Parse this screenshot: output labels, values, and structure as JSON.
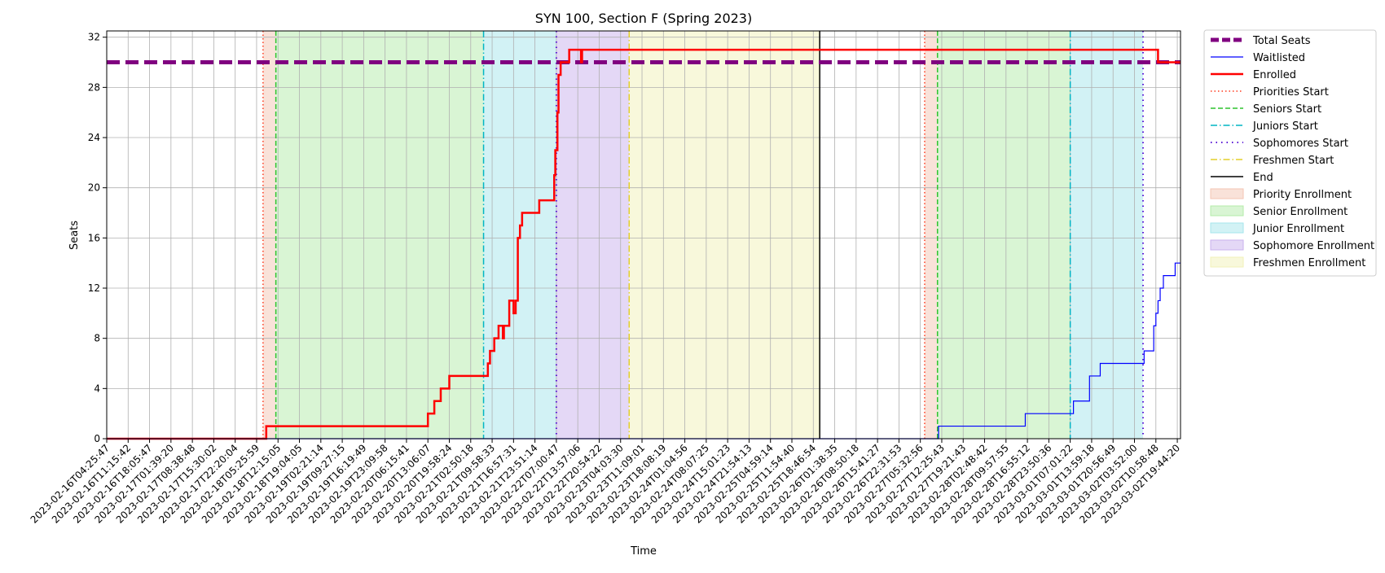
{
  "chart_data": {
    "type": "line",
    "title": "SYN 100, Section F (Spring 2023)",
    "xlabel": "Time",
    "ylabel": "Seats",
    "ylim": [
      0,
      32.5
    ],
    "yticks": [
      0,
      4,
      8,
      12,
      16,
      20,
      24,
      28,
      32
    ],
    "grid": true,
    "legend_position": "outside-right-top",
    "x_ticks": [
      "2023-02-16T04:25:47",
      "2023-02-16T11:15:42",
      "2023-02-16T18:05:47",
      "2023-02-17T01:39:20",
      "2023-02-17T08:38:48",
      "2023-02-17T15:30:02",
      "2023-02-17T22:20:04",
      "2023-02-18T05:25:59",
      "2023-02-18T12:15:05",
      "2023-02-18T19:04:05",
      "2023-02-19T02:21:14",
      "2023-02-19T09:27:15",
      "2023-02-19T16:19:49",
      "2023-02-19T23:09:58",
      "2023-02-20T06:15:41",
      "2023-02-20T13:06:07",
      "2023-02-20T19:58:24",
      "2023-02-21T02:50:18",
      "2023-02-21T09:58:33",
      "2023-02-21T16:57:31",
      "2023-02-21T23:51:14",
      "2023-02-22T07:00:47",
      "2023-02-22T13:57:06",
      "2023-02-22T20:54:22",
      "2023-02-23T04:03:30",
      "2023-02-23T11:09:01",
      "2023-02-23T18:08:19",
      "2023-02-24T01:04:56",
      "2023-02-24T08:07:25",
      "2023-02-24T15:01:23",
      "2023-02-24T21:54:13",
      "2023-02-25T04:59:14",
      "2023-02-25T11:54:40",
      "2023-02-25T18:46:54",
      "2023-02-26T01:38:35",
      "2023-02-26T08:50:18",
      "2023-02-26T15:41:27",
      "2023-02-26T22:31:53",
      "2023-02-27T05:32:56",
      "2023-02-27T12:25:43",
      "2023-02-27T19:21:43",
      "2023-02-28T02:48:42",
      "2023-02-28T09:57:55",
      "2023-02-28T16:55:12",
      "2023-02-28T23:50:36",
      "2023-03-01T07:01:22",
      "2023-03-01T13:59:18",
      "2023-03-01T20:56:49",
      "2023-03-02T03:52:00",
      "2023-03-02T10:58:48",
      "2023-03-02T19:44:20"
    ],
    "x_start_tick": 0,
    "x_end_tick": 50.15,
    "regions": [
      {
        "name": "Priority Enrollment",
        "x0": 7.3,
        "x1": 7.9,
        "color": "#f4c6b4"
      },
      {
        "name": "Senior Enrollment",
        "x0": 7.9,
        "x1": 17.6,
        "color": "#b4ecaa"
      },
      {
        "name": "Junior Enrollment",
        "x0": 17.6,
        "x1": 21.0,
        "color": "#a6e6ec"
      },
      {
        "name": "Sophomore Enrollment",
        "x0": 21.0,
        "x1": 24.4,
        "color": "#cab2ee"
      },
      {
        "name": "Freshmen Enrollment",
        "x0": 24.4,
        "x1": 33.3,
        "color": "#f2f2b8"
      },
      {
        "name": "Priority Enrollment",
        "x0": 38.2,
        "x1": 38.8,
        "color": "#f4c6b4"
      },
      {
        "name": "Senior Enrollment",
        "x0": 38.8,
        "x1": 45.0,
        "color": "#b4ecaa"
      },
      {
        "name": "Junior Enrollment",
        "x0": 45.0,
        "x1": 48.4,
        "color": "#a6e6ec"
      }
    ],
    "vlines": [
      {
        "name": "Priorities Start",
        "x": 7.3,
        "color": "#ff3b1f",
        "dash": "1.5,3",
        "width": 1.5
      },
      {
        "name": "Seniors Start",
        "x": 7.9,
        "color": "#2ec42e",
        "dash": "6,3",
        "width": 1.5
      },
      {
        "name": "Juniors Start",
        "x": 17.6,
        "color": "#00b5c4",
        "dash": "8,3,1.5,3",
        "width": 1.5
      },
      {
        "name": "Sophomores Start",
        "x": 21.0,
        "color": "#5a16d6",
        "dash": "1.5,5",
        "width": 2
      },
      {
        "name": "Freshmen Start",
        "x": 24.4,
        "color": "#e3cf2a",
        "dash": "8,3,1.5,3",
        "width": 1.5
      },
      {
        "name": "End",
        "x": 33.3,
        "color": "#000000",
        "dash": "",
        "width": 1.5
      },
      {
        "name": "Priorities Start",
        "x": 38.2,
        "color": "#ff3b1f",
        "dash": "1.5,3",
        "width": 1.5
      },
      {
        "name": "Seniors Start",
        "x": 38.8,
        "color": "#2ec42e",
        "dash": "6,3",
        "width": 1.5
      },
      {
        "name": "Juniors Start",
        "x": 45.0,
        "color": "#00b5c4",
        "dash": "8,3,1.5,3",
        "width": 1.5
      },
      {
        "name": "Sophomores Start",
        "x": 48.4,
        "color": "#5a16d6",
        "dash": "1.5,5",
        "width": 2
      }
    ],
    "series": [
      {
        "name": "Total Seats",
        "color": "#800080",
        "style": "dashed",
        "width": 5,
        "x": [
          0,
          50.15
        ],
        "y": [
          30,
          30
        ]
      },
      {
        "name": "Enrolled",
        "color": "#ff0000",
        "style": "step",
        "width": 2.5,
        "x": [
          0,
          7.45,
          7.75,
          7.8,
          15.0,
          15.3,
          15.6,
          16.0,
          16.1,
          17.8,
          17.9,
          18.1,
          18.3,
          18.5,
          18.55,
          18.7,
          18.8,
          19.0,
          19.1,
          19.2,
          19.3,
          19.4,
          19.45,
          19.6,
          20.2,
          20.9,
          20.95,
          21.05,
          21.1,
          21.2,
          21.25,
          21.35,
          21.6,
          22.15,
          22.2,
          49.0,
          49.1,
          50.15
        ],
        "y": [
          0,
          1,
          1,
          1,
          2,
          3,
          4,
          5,
          5,
          6,
          7,
          8,
          9,
          8,
          9,
          9,
          11,
          10,
          11,
          16,
          17,
          18,
          18,
          18,
          19,
          21,
          23,
          26,
          29,
          30,
          30,
          30,
          31,
          30,
          31,
          31,
          30,
          30
        ]
      },
      {
        "name": "Waitlisted",
        "color": "#0000ff",
        "style": "step",
        "width": 1.2,
        "x": [
          0,
          38.85,
          42.9,
          45.1,
          45.15,
          45.2,
          45.9,
          46.4,
          48.45,
          48.9,
          49.0,
          49.1,
          49.2,
          49.35,
          49.5,
          49.6,
          49.9,
          50.1,
          50.15
        ],
        "y": [
          0,
          1,
          2,
          2,
          3,
          3,
          5,
          6,
          7,
          9,
          10,
          11,
          12,
          13,
          13,
          13,
          14,
          14,
          14
        ]
      }
    ],
    "legend": [
      {
        "label": "Total Seats",
        "kind": "line",
        "color": "#800080",
        "dash": "10,4",
        "width": 5
      },
      {
        "label": "Waitlisted",
        "kind": "line",
        "color": "#0000ff",
        "dash": "",
        "width": 1.2
      },
      {
        "label": "Enrolled",
        "kind": "line",
        "color": "#ff0000",
        "dash": "",
        "width": 2.5
      },
      {
        "label": "Priorities Start",
        "kind": "line",
        "color": "#ff3b1f",
        "dash": "1.5,3",
        "width": 1.5
      },
      {
        "label": "Seniors Start",
        "kind": "line",
        "color": "#2ec42e",
        "dash": "6,3",
        "width": 1.5
      },
      {
        "label": "Juniors Start",
        "kind": "line",
        "color": "#00b5c4",
        "dash": "8,3,1.5,3",
        "width": 1.5
      },
      {
        "label": "Sophomores Start",
        "kind": "line",
        "color": "#5a16d6",
        "dash": "1.5,5",
        "width": 2
      },
      {
        "label": "Freshmen Start",
        "kind": "line",
        "color": "#e3cf2a",
        "dash": "8,3,1.5,3",
        "width": 1.5
      },
      {
        "label": "End",
        "kind": "line",
        "color": "#000000",
        "dash": "",
        "width": 1.5
      },
      {
        "label": "Priority Enrollment",
        "kind": "patch",
        "color": "#f4c6b4"
      },
      {
        "label": "Senior Enrollment",
        "kind": "patch",
        "color": "#b4ecaa"
      },
      {
        "label": "Junior Enrollment",
        "kind": "patch",
        "color": "#a6e6ec"
      },
      {
        "label": "Sophomore Enrollment",
        "kind": "patch",
        "color": "#cab2ee"
      },
      {
        "label": "Freshmen Enrollment",
        "kind": "patch",
        "color": "#f2f2b8"
      }
    ]
  }
}
